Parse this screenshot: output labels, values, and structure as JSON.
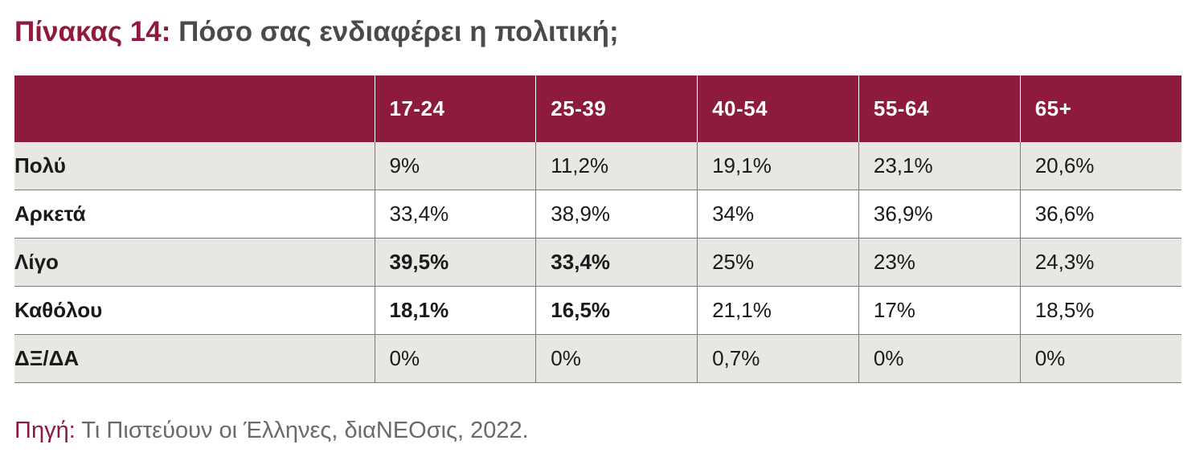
{
  "title": {
    "prefix": "Πίνακας 14:",
    "text": "Πόσο σας ενδιαφέρει η πολιτική;"
  },
  "table": {
    "headers": [
      "",
      "17-24",
      "25-39",
      "40-54",
      "55-64",
      "65+"
    ],
    "rows": [
      {
        "label": "Πολύ",
        "values": [
          "9%",
          "11,2%",
          "19,1%",
          "23,1%",
          "20,6%"
        ]
      },
      {
        "label": "Αρκετά",
        "values": [
          "33,4%",
          "38,9%",
          "34%",
          "36,9%",
          "36,6%"
        ]
      },
      {
        "label": "Λίγο",
        "values": [
          "39,5%",
          "33,4%",
          "25%",
          "23%",
          "24,3%"
        ]
      },
      {
        "label": "Καθόλου",
        "values": [
          "18,1%",
          "16,5%",
          "21,1%",
          "17%",
          "18,5%"
        ]
      },
      {
        "label": "ΔΞ/ΔΑ",
        "values": [
          "0%",
          "0%",
          "0,7%",
          "0%",
          "0%"
        ]
      }
    ]
  },
  "source": {
    "label": "Πηγή:",
    "text": " Τι Πιστεύουν οι Έλληνες, διαΝΕΟσις, 2022."
  },
  "colors": {
    "accent": "#8e1a3c",
    "row_shade": "#e9e7e4",
    "text": "#1a1a1a"
  }
}
